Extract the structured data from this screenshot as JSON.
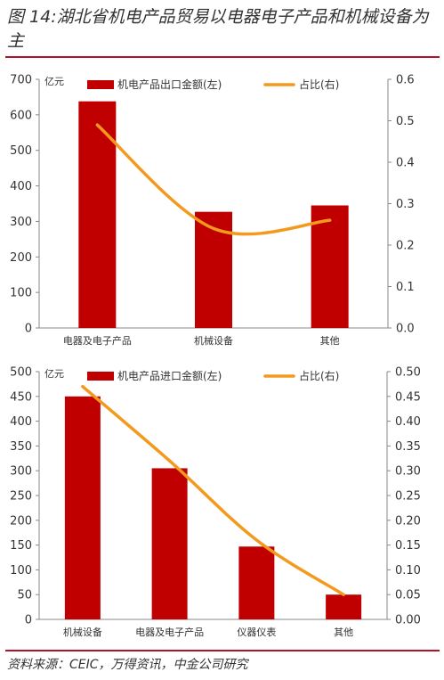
{
  "figure": {
    "title": "图 14:湖北省机电产品贸易以电器电子产品和机械设备为主",
    "source": "资料来源：CEIC，万得资讯，中金公司研究"
  },
  "colors": {
    "bar": "#c00000",
    "line": "#f39a1e",
    "rule": "#b4122c",
    "axis": "#888888"
  },
  "chart_data": [
    {
      "type": "bar",
      "categories": [
        "电器及电子产品",
        "机械设备",
        "其他"
      ],
      "series": [
        {
          "name": "机电产品出口金额(左)",
          "type": "bar",
          "axis": "left",
          "values": [
            638,
            327,
            345
          ]
        },
        {
          "name": "占比(右)",
          "type": "line",
          "axis": "right",
          "values": [
            0.49,
            0.24,
            0.26
          ]
        }
      ],
      "ylabel": "亿元",
      "ylim": [
        0,
        700
      ],
      "yticks": [
        "0",
        "100",
        "200",
        "300",
        "400",
        "500",
        "600",
        "700"
      ],
      "y2lim": [
        0,
        0.6
      ],
      "y2ticks": [
        "0.0",
        "0.1",
        "0.2",
        "0.3",
        "0.4",
        "0.5",
        "0.6"
      ],
      "legend": "top",
      "grid": false
    },
    {
      "type": "bar",
      "categories": [
        "机械设备",
        "电器及电子产品",
        "仪器仪表",
        "其他"
      ],
      "series": [
        {
          "name": "机电产品进口金额(左)",
          "type": "bar",
          "axis": "left",
          "values": [
            450,
            305,
            147,
            50
          ]
        },
        {
          "name": "占比(右)",
          "type": "line",
          "axis": "right",
          "values": [
            0.47,
            0.32,
            0.16,
            0.05
          ]
        }
      ],
      "ylabel": "亿元",
      "ylim": [
        0,
        500
      ],
      "yticks": [
        "0",
        "50",
        "100",
        "150",
        "200",
        "250",
        "300",
        "350",
        "400",
        "450",
        "500"
      ],
      "y2lim": [
        0,
        0.5
      ],
      "y2ticks": [
        "0.00",
        "0.05",
        "0.10",
        "0.15",
        "0.20",
        "0.25",
        "0.30",
        "0.35",
        "0.40",
        "0.45",
        "0.50"
      ],
      "legend": "top",
      "grid": false
    }
  ]
}
